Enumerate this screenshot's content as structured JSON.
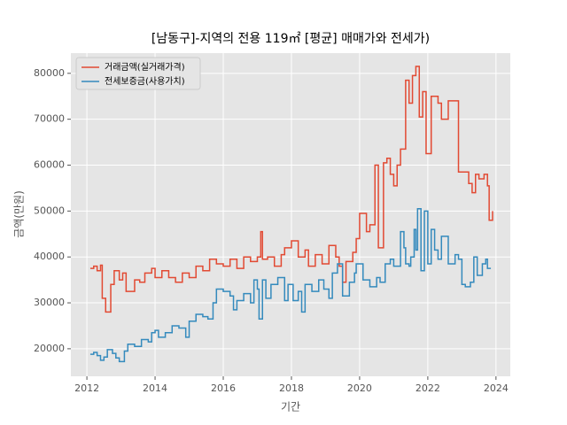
{
  "chart_data": {
    "type": "line",
    "step": "post",
    "title": "[남동구]-지역의 전용 119㎡ [평균] 매매가와 전세가)",
    "xlabel": "기간",
    "ylabel": "금액(만원)",
    "xlim": [
      2011.53,
      2024.42
    ],
    "xticks": [
      2012,
      2014,
      2016,
      2018,
      2020,
      2022,
      2024
    ],
    "ylim": [
      14000,
      84400
    ],
    "yticks": [
      20000,
      30000,
      40000,
      50000,
      60000,
      70000,
      80000
    ],
    "grid": true,
    "legend": "upper left",
    "background": "#e5e5e5",
    "series": [
      {
        "name": "거래금액(실거래가격)",
        "color": "#e24a33",
        "x": [
          2012.1,
          2012.2,
          2012.3,
          2012.4,
          2012.45,
          2012.55,
          2012.7,
          2012.8,
          2012.95,
          2013.05,
          2013.15,
          2013.4,
          2013.55,
          2013.7,
          2013.9,
          2014.0,
          2014.2,
          2014.4,
          2014.6,
          2014.8,
          2015.0,
          2015.2,
          2015.4,
          2015.6,
          2015.8,
          2016.0,
          2016.2,
          2016.4,
          2016.6,
          2016.8,
          2017.0,
          2017.1,
          2017.15,
          2017.3,
          2017.5,
          2017.7,
          2017.8,
          2018.0,
          2018.2,
          2018.4,
          2018.5,
          2018.7,
          2018.9,
          2019.1,
          2019.3,
          2019.4,
          2019.5,
          2019.6,
          2019.8,
          2019.9,
          2020.0,
          2020.2,
          2020.3,
          2020.45,
          2020.55,
          2020.7,
          2020.8,
          2020.9,
          2021.0,
          2021.1,
          2021.2,
          2021.35,
          2021.45,
          2021.55,
          2021.65,
          2021.75,
          2021.85,
          2021.95,
          2022.1,
          2022.3,
          2022.4,
          2022.6,
          2022.9,
          2023.2,
          2023.3,
          2023.4,
          2023.5,
          2023.65,
          2023.75,
          2023.8,
          2023.9
        ],
        "values": [
          37500,
          38000,
          37000,
          38200,
          31000,
          28000,
          34000,
          37000,
          35000,
          36500,
          32500,
          35000,
          34500,
          36500,
          37500,
          35500,
          37000,
          35500,
          34500,
          36500,
          35500,
          38000,
          37000,
          39500,
          38500,
          38000,
          39500,
          37500,
          40000,
          39000,
          40000,
          45500,
          39500,
          40000,
          38000,
          40500,
          42000,
          43500,
          40000,
          41500,
          38000,
          40500,
          38500,
          42500,
          40000,
          38000,
          34500,
          39000,
          41000,
          44000,
          49500,
          45500,
          47000,
          60000,
          42000,
          60500,
          61500,
          58000,
          55500,
          60000,
          63500,
          78500,
          73500,
          79500,
          81500,
          70500,
          76000,
          62500,
          75000,
          73500,
          70000,
          74000,
          58500,
          56000,
          54000,
          58000,
          57000,
          58000,
          55500,
          48000,
          50000
        ]
      },
      {
        "name": "전세보증금(사용가치)",
        "color": "#348abd",
        "x": [
          2012.1,
          2012.2,
          2012.3,
          2012.4,
          2012.5,
          2012.6,
          2012.75,
          2012.85,
          2012.95,
          2013.1,
          2013.2,
          2013.4,
          2013.6,
          2013.8,
          2013.9,
          2014.0,
          2014.1,
          2014.3,
          2014.5,
          2014.7,
          2014.9,
          2015.0,
          2015.2,
          2015.4,
          2015.55,
          2015.7,
          2015.8,
          2016.0,
          2016.2,
          2016.3,
          2016.4,
          2016.6,
          2016.8,
          2016.9,
          2017.0,
          2017.05,
          2017.15,
          2017.25,
          2017.4,
          2017.6,
          2017.8,
          2017.9,
          2018.05,
          2018.2,
          2018.3,
          2018.4,
          2018.6,
          2018.8,
          2018.95,
          2019.1,
          2019.2,
          2019.35,
          2019.5,
          2019.7,
          2019.85,
          2019.9,
          2020.1,
          2020.3,
          2020.5,
          2020.6,
          2020.75,
          2020.9,
          2021.0,
          2021.2,
          2021.3,
          2021.35,
          2021.45,
          2021.5,
          2021.6,
          2021.65,
          2021.7,
          2021.8,
          2021.9,
          2022.0,
          2022.1,
          2022.2,
          2022.3,
          2022.4,
          2022.6,
          2022.8,
          2022.9,
          2023.0,
          2023.1,
          2023.25,
          2023.35,
          2023.45,
          2023.6,
          2023.7,
          2023.75,
          2023.85
        ],
        "values": [
          18800,
          19200,
          18500,
          17500,
          18200,
          19800,
          19000,
          18000,
          17200,
          19500,
          21000,
          20500,
          22000,
          21500,
          23500,
          24000,
          22500,
          23500,
          25000,
          24500,
          22500,
          26000,
          27500,
          27000,
          26500,
          30000,
          33000,
          32500,
          31500,
          28500,
          30500,
          32000,
          30000,
          35000,
          33000,
          26500,
          35000,
          31000,
          34000,
          35500,
          30500,
          34000,
          30500,
          32500,
          28000,
          34000,
          32500,
          35000,
          33000,
          31000,
          36500,
          38500,
          31500,
          34500,
          36500,
          38500,
          35000,
          33500,
          35500,
          34500,
          38500,
          39500,
          38000,
          45500,
          42000,
          38500,
          38000,
          40000,
          46000,
          41500,
          50500,
          37000,
          50000,
          38500,
          46000,
          41500,
          39500,
          44500,
          38500,
          40500,
          39500,
          34000,
          33500,
          34500,
          40000,
          36000,
          38500,
          39500,
          37500,
          37500
        ]
      }
    ]
  }
}
